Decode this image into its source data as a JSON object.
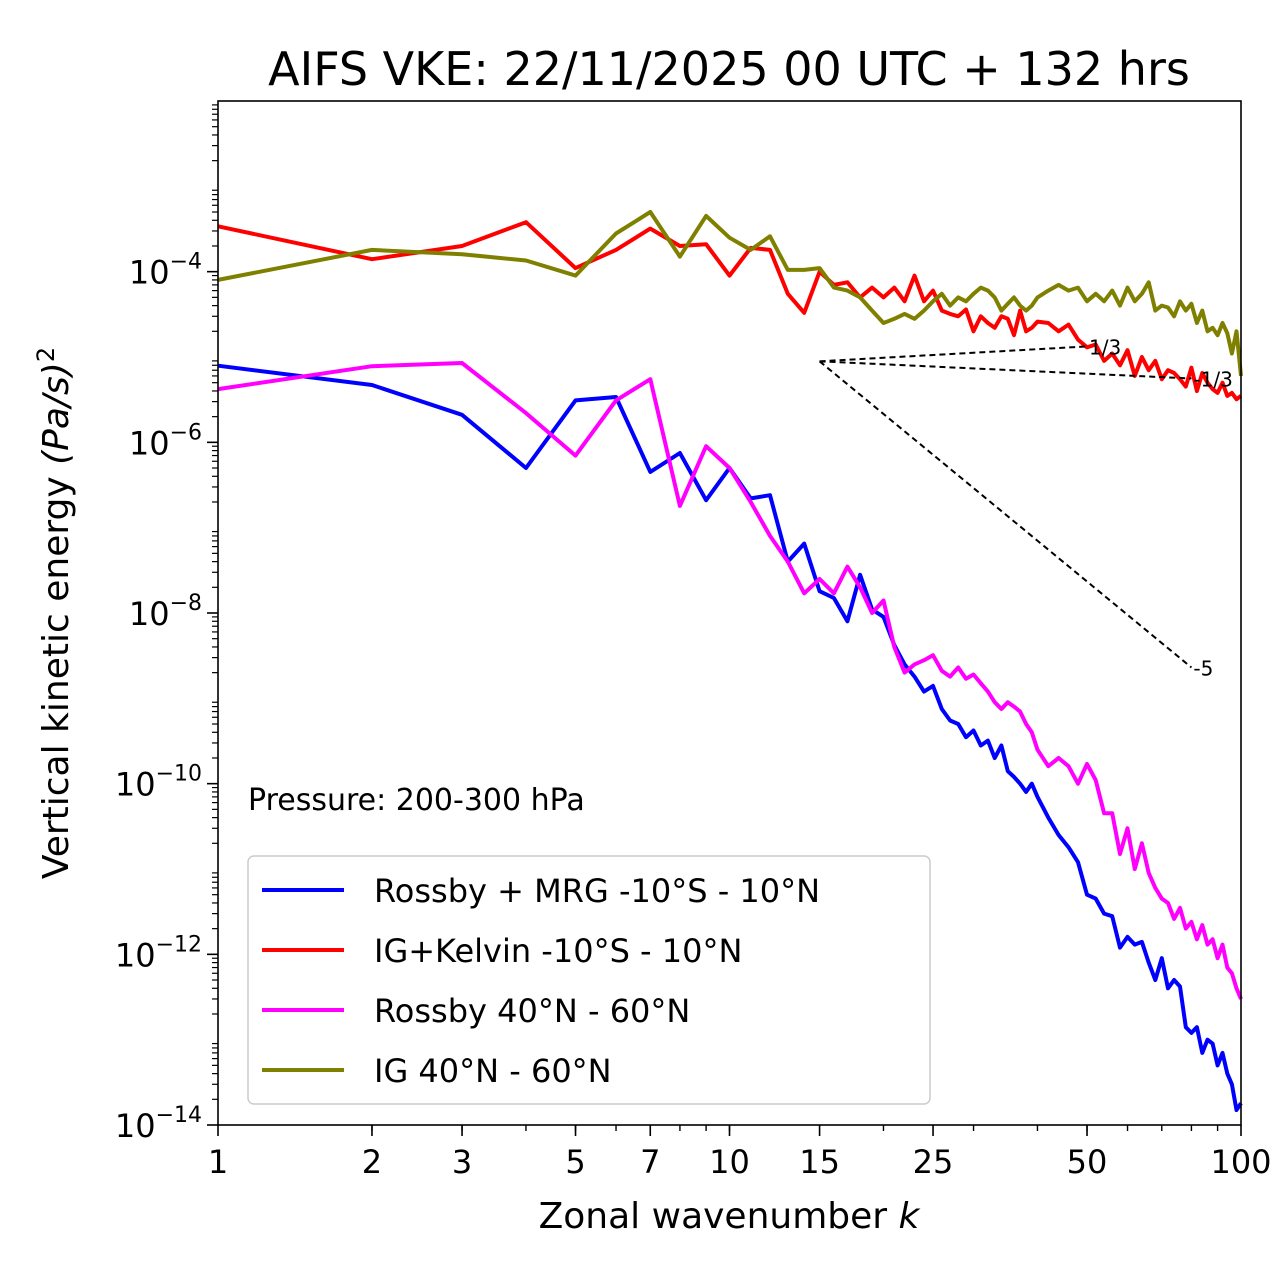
{
  "chart_data": {
    "type": "line",
    "title": "AIFS VKE: 22/11/2025 00 UTC + 132 hrs",
    "xlabel": "Zonal wavenumber",
    "xlabel_var": "k",
    "ylabel": "Vertical kinetic energy",
    "ylabel_unit": "(Pa/s)",
    "ylabel_exp": "2",
    "xscale": "log",
    "yscale": "log",
    "xlim": [
      1,
      100
    ],
    "ylim": [
      1e-14,
      0.01
    ],
    "xticks": [
      1,
      2,
      3,
      5,
      7,
      10,
      15,
      25,
      50,
      100
    ],
    "xtick_labels": [
      "1",
      "2",
      "3",
      "5",
      "7",
      "10",
      "15",
      "25",
      "50",
      "100"
    ],
    "yticks": [
      {
        "value": 0.0001,
        "base": "10",
        "exp": "−4"
      },
      {
        "value": 1e-06,
        "base": "10",
        "exp": "−6"
      },
      {
        "value": 1e-08,
        "base": "10",
        "exp": "−8"
      },
      {
        "value": 1e-10,
        "base": "10",
        "exp": "−10"
      },
      {
        "value": 1e-12,
        "base": "10",
        "exp": "−12"
      },
      {
        "value": 1e-14,
        "base": "10",
        "exp": "−14"
      }
    ],
    "annotation": "Pressure: 200-300 hPa",
    "legend_position": "lower-left",
    "reference_lines": [
      {
        "slope": "-1/3",
        "label": "-1/3",
        "x": [
          15,
          80
        ],
        "y": [
          8.9e-06,
          5.6e-06
        ]
      },
      {
        "slope": "1/3",
        "label": "1/3",
        "x": [
          15,
          50
        ],
        "y": [
          8.9e-06,
          1.33e-05
        ]
      },
      {
        "slope": "-5",
        "label": "-5",
        "x": [
          15,
          80
        ],
        "y": [
          8.9e-06,
          2.3e-09
        ]
      }
    ],
    "series": [
      {
        "name": "Rossby + MRG -10°S - 10°N",
        "color": "#0000ff",
        "x": [
          1,
          2,
          3,
          4,
          5,
          6,
          7,
          8,
          9,
          10,
          11,
          12,
          13,
          14,
          15,
          16,
          17,
          18,
          19,
          20,
          21,
          22,
          23,
          24,
          25,
          26,
          27,
          28,
          29,
          30,
          31,
          32,
          33,
          34,
          35,
          36,
          37,
          38,
          39,
          40,
          42,
          44,
          46,
          48,
          50,
          52,
          54,
          56,
          58,
          60,
          62,
          64,
          66,
          68,
          70,
          72,
          74,
          76,
          78,
          80,
          82,
          84,
          86,
          88,
          90,
          92,
          94,
          96,
          98,
          100
        ],
        "y": [
          7.9e-06,
          4.7e-06,
          2.1e-06,
          5e-07,
          3.1e-06,
          3.4e-06,
          4.5e-07,
          7.5e-07,
          2.1e-07,
          5e-07,
          2.2e-07,
          2.4e-07,
          4e-08,
          6.5e-08,
          1.8e-08,
          1.5e-08,
          8e-09,
          2.8e-08,
          1.1e-08,
          9e-09,
          4.2e-09,
          2.5e-09,
          1.8e-09,
          1.2e-09,
          1.4e-09,
          7.5e-10,
          5.5e-10,
          5e-10,
          3.5e-10,
          4.2e-10,
          2.8e-10,
          3.2e-10,
          2e-10,
          2.8e-10,
          1.4e-10,
          1.2e-10,
          1e-10,
          8e-11,
          1e-10,
          7e-11,
          4e-11,
          2.5e-11,
          1.8e-11,
          1.2e-11,
          5e-12,
          4.5e-12,
          3e-12,
          2.8e-12,
          1.2e-12,
          1.6e-12,
          1.3e-12,
          1.4e-12,
          8e-13,
          5e-13,
          9e-13,
          4e-13,
          5e-13,
          4.2e-13,
          1.4e-13,
          1.2e-13,
          1.4e-13,
          7e-14,
          1e-13,
          9e-14,
          5e-14,
          7e-14,
          4e-14,
          3e-14,
          1.5e-14,
          1.8e-14
        ]
      },
      {
        "name": "IG+Kelvin -10°S - 10°N",
        "color": "#ff0000",
        "x": [
          1,
          2,
          3,
          4,
          5,
          6,
          7,
          8,
          9,
          10,
          11,
          12,
          13,
          14,
          15,
          16,
          17,
          18,
          19,
          20,
          21,
          22,
          23,
          24,
          25,
          26,
          27,
          28,
          29,
          30,
          31,
          32,
          33,
          34,
          35,
          36,
          37,
          38,
          39,
          40,
          42,
          44,
          46,
          48,
          50,
          52,
          54,
          56,
          58,
          60,
          62,
          64,
          66,
          68,
          70,
          72,
          74,
          76,
          78,
          80,
          82,
          84,
          86,
          88,
          90,
          92,
          94,
          96,
          98,
          100
        ],
        "y": [
          0.00034,
          0.00014,
          0.0002,
          0.00038,
          0.00011,
          0.00018,
          0.00032,
          0.0002,
          0.00021,
          9e-05,
          0.00019,
          0.00018,
          5.5e-05,
          3.3e-05,
          0.0001,
          7e-05,
          7.5e-05,
          5e-05,
          6.5e-05,
          5e-05,
          6.5e-05,
          4.5e-05,
          9e-05,
          4.5e-05,
          6e-05,
          3.5e-05,
          3.2e-05,
          3e-05,
          3.6e-05,
          2e-05,
          3e-05,
          2.5e-05,
          2.2e-05,
          3e-05,
          2.8e-05,
          1.8e-05,
          3.5e-05,
          2e-05,
          2.2e-05,
          2.6e-05,
          2.5e-05,
          2e-05,
          2.4e-05,
          1.6e-05,
          1.3e-05,
          1.4e-05,
          9e-06,
          1.1e-05,
          8e-06,
          1.2e-05,
          6e-06,
          1e-05,
          7e-06,
          9e-06,
          5.5e-06,
          7e-06,
          6.5e-06,
          5.5e-06,
          4.5e-06,
          7.5e-06,
          4e-06,
          6.5e-06,
          5e-06,
          4.2e-06,
          3.8e-06,
          5e-06,
          3.5e-06,
          3.8e-06,
          3.2e-06,
          3.5e-06
        ]
      },
      {
        "name": "Rossby 40°N - 60°N",
        "color": "#ff00ff",
        "x": [
          1,
          2,
          3,
          4,
          5,
          6,
          7,
          8,
          9,
          10,
          11,
          12,
          13,
          14,
          15,
          16,
          17,
          18,
          19,
          20,
          21,
          22,
          23,
          24,
          25,
          26,
          27,
          28,
          29,
          30,
          31,
          32,
          33,
          34,
          35,
          36,
          37,
          38,
          39,
          40,
          42,
          44,
          46,
          48,
          50,
          52,
          54,
          56,
          58,
          60,
          62,
          64,
          66,
          68,
          70,
          72,
          74,
          76,
          78,
          80,
          82,
          84,
          86,
          88,
          90,
          92,
          94,
          96,
          98,
          100
        ],
        "y": [
          4.2e-06,
          7.8e-06,
          8.5e-06,
          2.2e-06,
          7e-07,
          3.1e-06,
          5.5e-06,
          1.8e-07,
          9e-07,
          5e-07,
          2e-07,
          8e-08,
          4e-08,
          1.7e-08,
          2.5e-08,
          1.7e-08,
          3.5e-08,
          2e-08,
          1e-08,
          1.4e-08,
          4e-09,
          2e-09,
          2.5e-09,
          2.8e-09,
          3.2e-09,
          2.1e-09,
          1.8e-09,
          2.3e-09,
          1.7e-09,
          1.9e-09,
          1.5e-09,
          1.2e-09,
          9e-10,
          7.5e-10,
          9e-10,
          8e-10,
          7e-10,
          5e-10,
          4e-10,
          2.5e-10,
          1.6e-10,
          2e-10,
          1.6e-10,
          1e-10,
          1.7e-10,
          1.1e-10,
          4.5e-11,
          4.5e-11,
          1.5e-11,
          3e-11,
          1e-11,
          2e-11,
          9e-12,
          6e-12,
          4.5e-12,
          4e-12,
          2.6e-12,
          3.5e-12,
          2e-12,
          2.4e-12,
          1.5e-12,
          2.2e-12,
          1.3e-12,
          1.5e-12,
          9e-13,
          1.3e-12,
          7e-13,
          6e-13,
          4e-13,
          3e-13
        ]
      },
      {
        "name": "IG 40°N - 60°N",
        "color": "#808000",
        "x": [
          1,
          2,
          3,
          4,
          5,
          6,
          7,
          8,
          9,
          10,
          11,
          12,
          13,
          14,
          15,
          16,
          17,
          18,
          19,
          20,
          21,
          22,
          23,
          24,
          25,
          26,
          27,
          28,
          29,
          30,
          31,
          32,
          33,
          34,
          35,
          36,
          37,
          38,
          39,
          40,
          42,
          44,
          46,
          48,
          50,
          52,
          54,
          56,
          58,
          60,
          62,
          64,
          66,
          68,
          70,
          72,
          74,
          76,
          78,
          80,
          82,
          84,
          86,
          88,
          90,
          92,
          94,
          96,
          98,
          100
        ],
        "y": [
          8e-05,
          0.00018,
          0.00016,
          0.000135,
          9e-05,
          0.00028,
          0.0005,
          0.00015,
          0.00045,
          0.00025,
          0.00018,
          0.00026,
          0.000105,
          0.000105,
          0.00011,
          6.5e-05,
          6e-05,
          5e-05,
          3.5e-05,
          2.5e-05,
          2.8e-05,
          3.2e-05,
          2.8e-05,
          3.5e-05,
          4.5e-05,
          5.5e-05,
          4e-05,
          5e-05,
          4.5e-05,
          5.5e-05,
          6.5e-05,
          6e-05,
          5e-05,
          3.5e-05,
          4.2e-05,
          5e-05,
          4e-05,
          3.5e-05,
          4e-05,
          5e-05,
          6e-05,
          7e-05,
          6e-05,
          6.5e-05,
          4.5e-05,
          5.5e-05,
          4.5e-05,
          6e-05,
          4e-05,
          6.5e-05,
          4.5e-05,
          5.5e-05,
          7.5e-05,
          3.5e-05,
          4e-05,
          3.8e-05,
          3e-05,
          4.5e-05,
          3.5e-05,
          4.2e-05,
          2.5e-05,
          3.5e-05,
          2e-05,
          2.2e-05,
          1.8e-05,
          2.5e-05,
          1.9e-05,
          1.1e-05,
          2e-05,
          6e-06
        ]
      }
    ]
  }
}
